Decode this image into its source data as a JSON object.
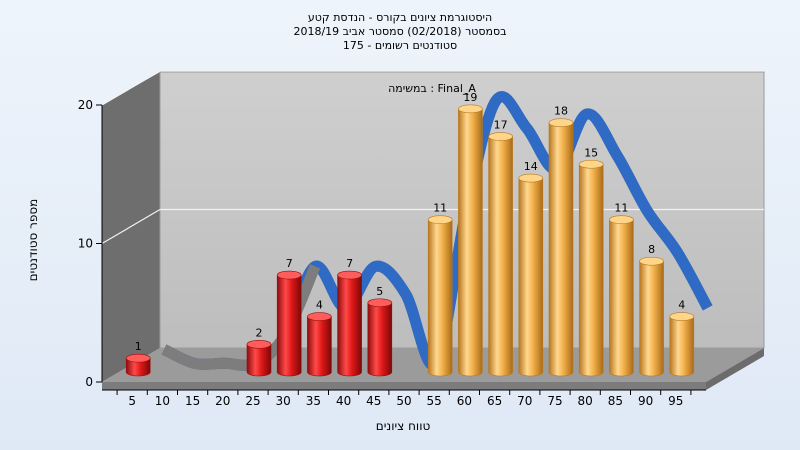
{
  "chart_data": {
    "type": "bar",
    "title_lines": [
      "היסטוגרמת ציונים בקורס - הנדסת קטע",
      "בסמסטר  (02/2018)  סמסטר אביב 2018/19",
      "סטודנטים רשומים - 175"
    ],
    "xlabel": "טווח ציונים",
    "ylabel": "מספר סטודנטים",
    "ylim": [
      0,
      20
    ],
    "yticks": [
      "0",
      "10",
      "20"
    ],
    "legend": "במשימה : Final_A",
    "grid": true,
    "categories": [
      "5",
      "10",
      "15",
      "20",
      "25",
      "30",
      "35",
      "40",
      "45",
      "50",
      "55",
      "60",
      "65",
      "70",
      "75",
      "80",
      "85",
      "90",
      "95"
    ],
    "series": [
      {
        "values": [
          1,
          0,
          0,
          0,
          2,
          7,
          4,
          7,
          5,
          0,
          11,
          19,
          17,
          14,
          18,
          15,
          11,
          8,
          4
        ],
        "colors": [
          "red",
          "red",
          "red",
          "red",
          "red",
          "red",
          "red",
          "red",
          "red",
          "red",
          "orange",
          "orange",
          "orange",
          "orange",
          "orange",
          "orange",
          "orange",
          "orange",
          "orange"
        ]
      }
    ],
    "colors": {
      "red": "#e01818",
      "orange": "#f2b04a",
      "trend": "#2f6bc4",
      "trend_shadow": "#7d7d7d",
      "wall_left": "#6f6f6f",
      "wall_back": "#c4c4c4",
      "floor": "#9a9a9a"
    }
  }
}
